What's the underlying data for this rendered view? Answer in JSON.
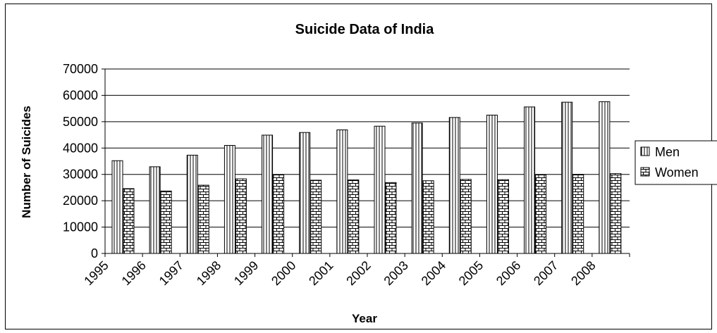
{
  "chart_data": {
    "type": "bar",
    "title": "Suicide Data of India",
    "xlabel": "Year",
    "ylabel": "Number of Suicides",
    "categories": [
      "1995",
      "1996",
      "1997",
      "1998",
      "1999",
      "2000",
      "2001",
      "2002",
      "2003",
      "2004",
      "2005",
      "2006",
      "2007",
      "2008"
    ],
    "series": [
      {
        "name": "Men",
        "values": [
          35200,
          32900,
          37300,
          41000,
          44900,
          45900,
          46900,
          48300,
          49500,
          51600,
          52500,
          55600,
          57400,
          57600
        ]
      },
      {
        "name": "Women",
        "values": [
          24600,
          23700,
          25900,
          28300,
          29800,
          27800,
          27900,
          26900,
          27600,
          28100,
          28000,
          29800,
          30000,
          30300
        ]
      }
    ],
    "ylim": [
      0,
      70000
    ],
    "yticks": [
      0,
      10000,
      20000,
      30000,
      40000,
      50000,
      60000,
      70000
    ],
    "grid": true,
    "legend_position": "right"
  }
}
